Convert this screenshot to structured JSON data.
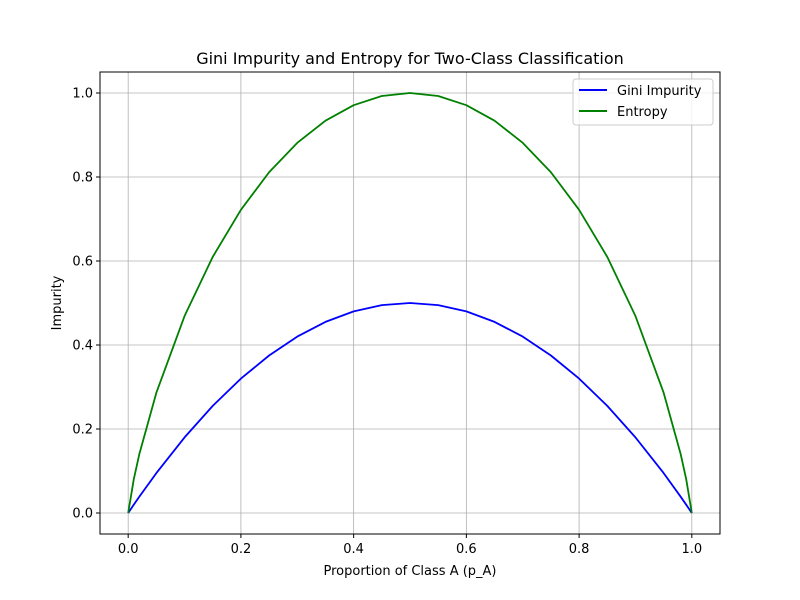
{
  "chart_data": {
    "type": "line",
    "title": "Gini Impurity and Entropy for Two-Class Classification",
    "xlabel": "Proportion of Class A (p_A)",
    "ylabel": "Impurity",
    "xlim": [
      -0.05,
      1.05
    ],
    "ylim": [
      -0.05,
      1.05
    ],
    "grid": true,
    "legend_position": "top-right",
    "x_ticks": [
      0.0,
      0.2,
      0.4,
      0.6,
      0.8,
      1.0
    ],
    "x_tick_labels": [
      "0.0",
      "0.2",
      "0.4",
      "0.6",
      "0.8",
      "1.0"
    ],
    "y_ticks": [
      0.0,
      0.2,
      0.4,
      0.6,
      0.8,
      1.0
    ],
    "y_tick_labels": [
      "0.0",
      "0.2",
      "0.4",
      "0.6",
      "0.8",
      "1.0"
    ],
    "x": [
      0.0,
      0.01,
      0.02,
      0.05,
      0.1,
      0.15,
      0.2,
      0.25,
      0.3,
      0.35,
      0.4,
      0.45,
      0.5,
      0.55,
      0.6,
      0.65,
      0.7,
      0.75,
      0.8,
      0.85,
      0.9,
      0.95,
      0.98,
      0.99,
      1.0
    ],
    "series": [
      {
        "name": "Gini Impurity",
        "color": "#0000ff",
        "values": [
          0.0,
          0.0198,
          0.0392,
          0.095,
          0.18,
          0.255,
          0.32,
          0.375,
          0.42,
          0.455,
          0.48,
          0.495,
          0.5,
          0.495,
          0.48,
          0.455,
          0.42,
          0.375,
          0.32,
          0.255,
          0.18,
          0.095,
          0.0392,
          0.0198,
          0.0
        ]
      },
      {
        "name": "Entropy",
        "color": "#008000",
        "values": [
          0.0,
          0.0808,
          0.1414,
          0.2864,
          0.469,
          0.6098,
          0.7219,
          0.8113,
          0.8813,
          0.9341,
          0.971,
          0.9928,
          1.0,
          0.9928,
          0.971,
          0.9341,
          0.8813,
          0.8113,
          0.7219,
          0.6098,
          0.469,
          0.2864,
          0.1414,
          0.0808,
          0.0
        ]
      }
    ]
  }
}
